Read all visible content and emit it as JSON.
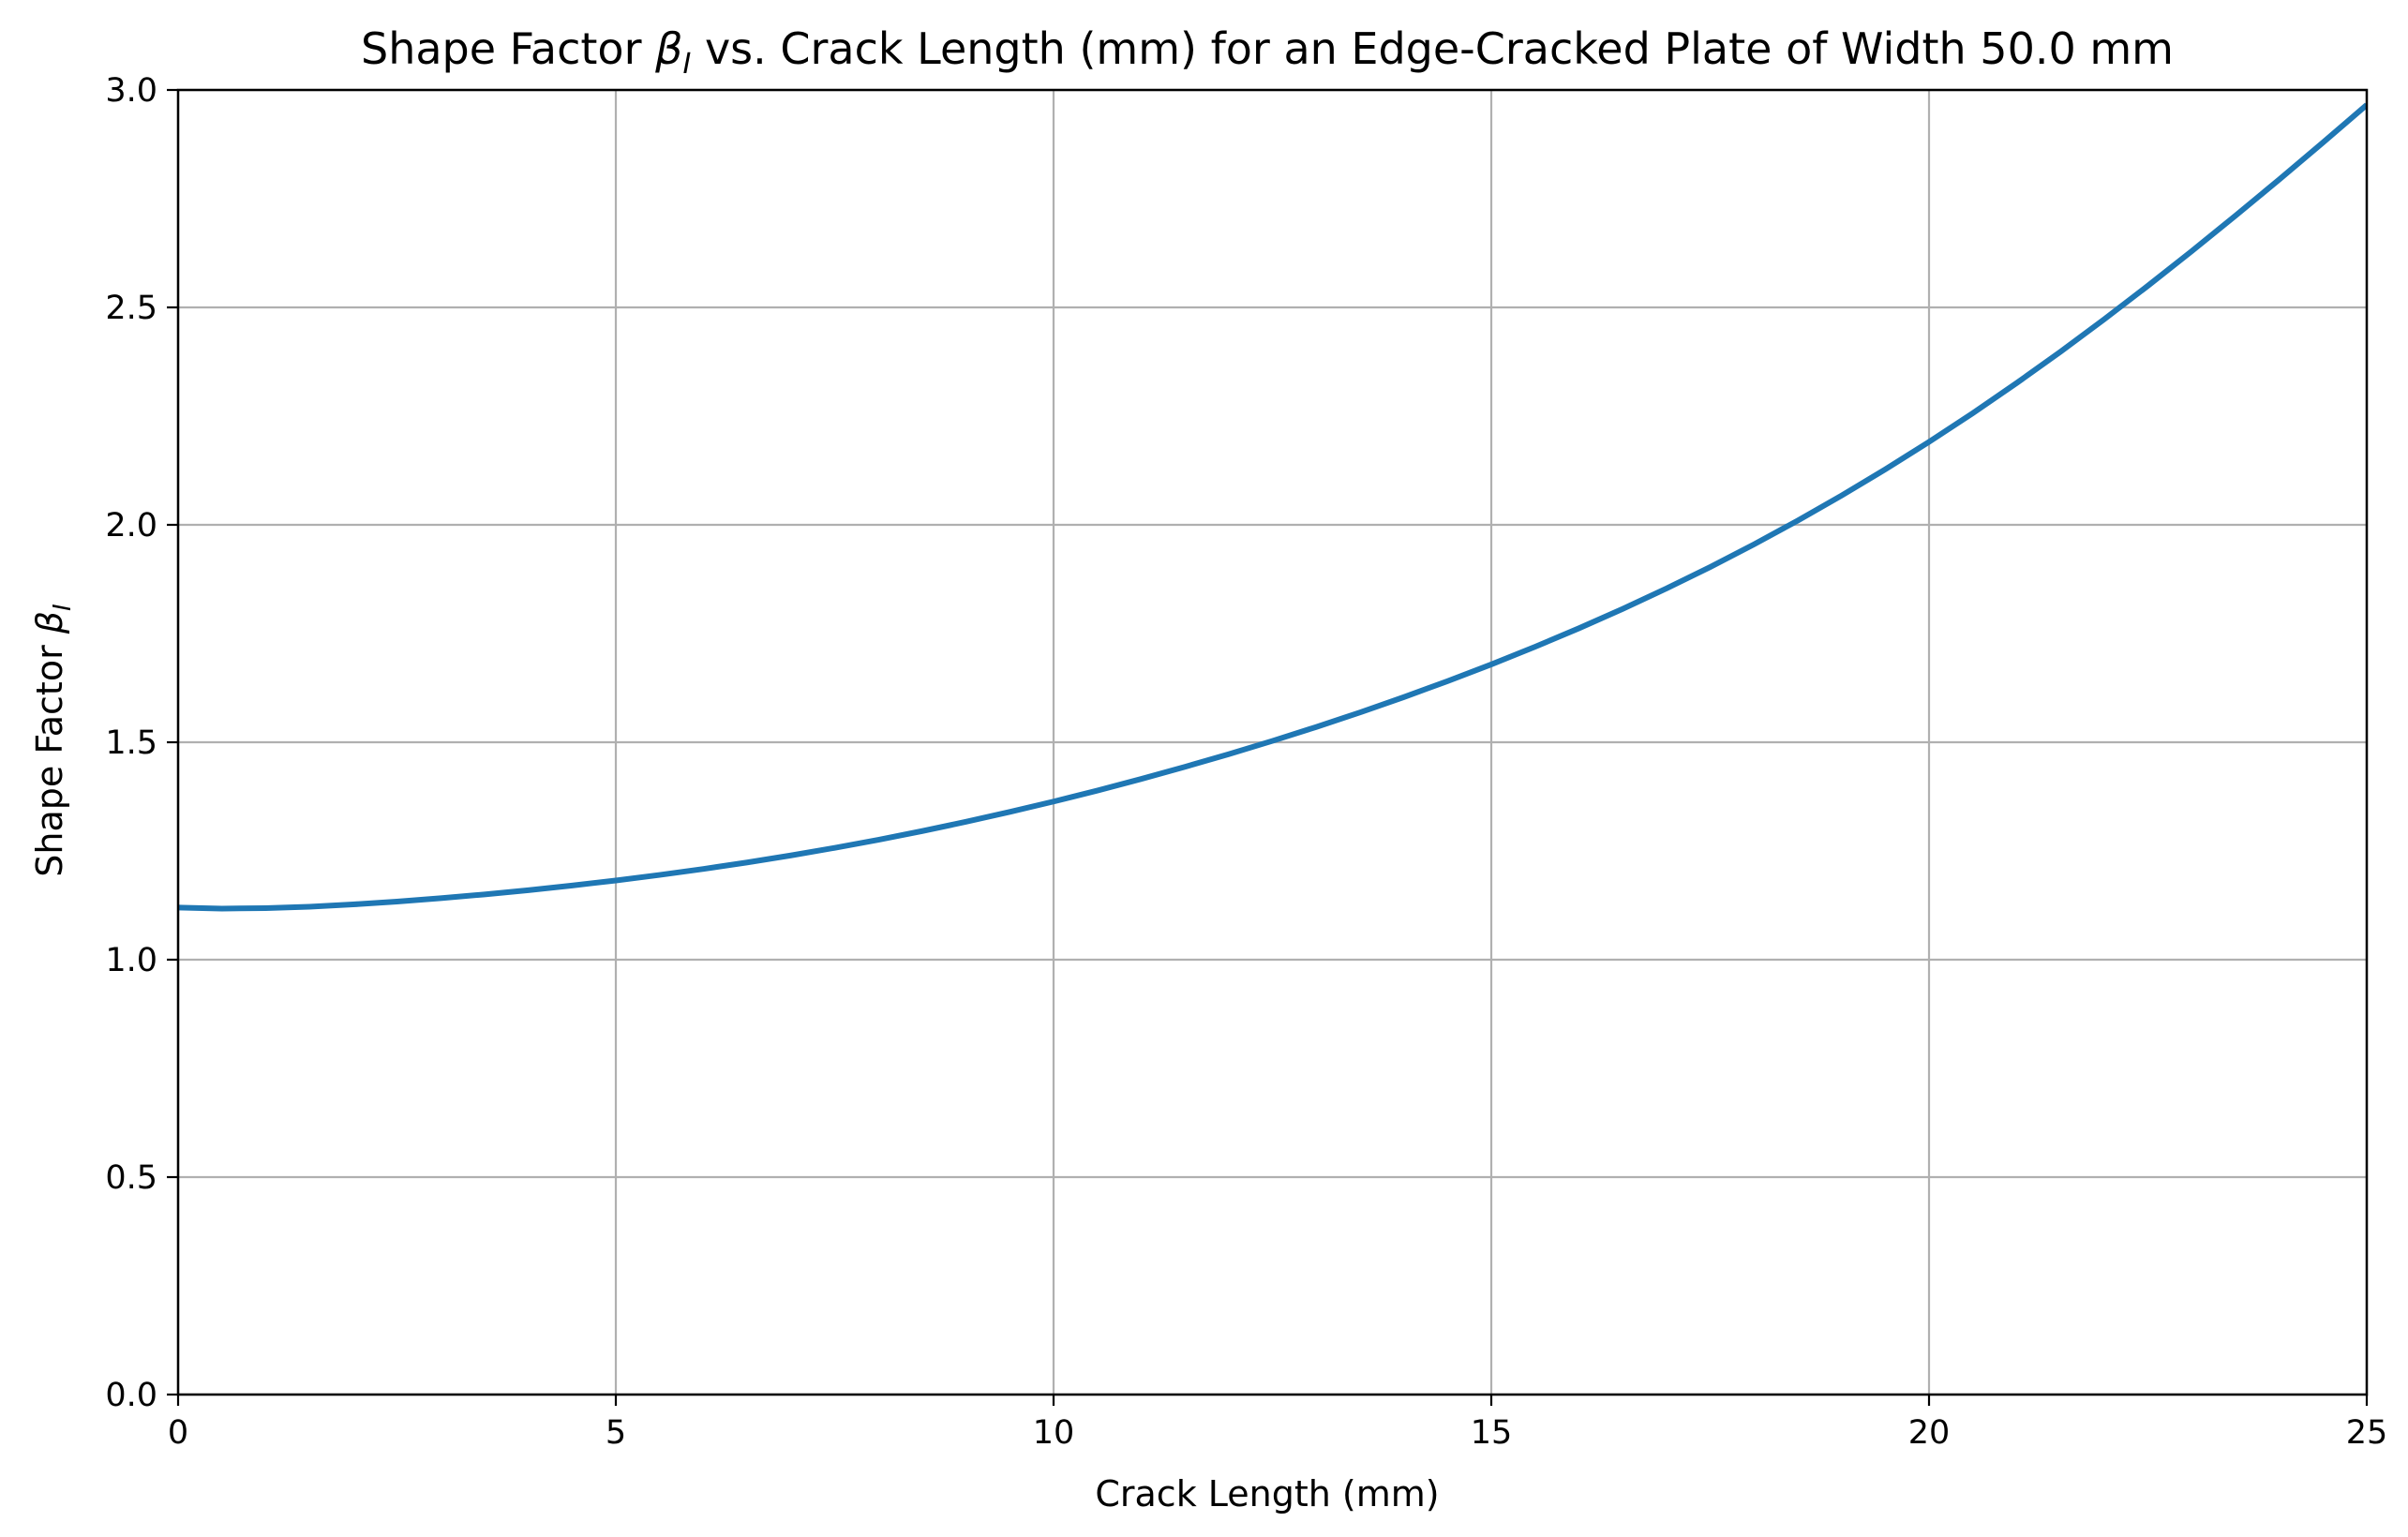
{
  "chart_data": {
    "type": "line",
    "title_prefix": "Shape Factor ",
    "title_symbol": "β",
    "title_subscript": "I",
    "title_suffix": " vs. Crack Length (mm) for an Edge-Cracked Plate of Width 50.0 mm",
    "xlabel": "Crack Length (mm)",
    "ylabel_prefix": "Shape Factor ",
    "ylabel_symbol": "β",
    "ylabel_subscript": "I",
    "xlim": [
      0,
      25
    ],
    "ylim": [
      0,
      3
    ],
    "x_ticks": [
      "0",
      "5",
      "10",
      "15",
      "20",
      "25"
    ],
    "y_ticks": [
      "0.0",
      "0.5",
      "1.0",
      "1.5",
      "2.0",
      "2.5",
      "3.0"
    ],
    "grid": true,
    "line_color": "#1f77b4",
    "grid_color": "#b0b0b0",
    "series": [
      {
        "x": [
          0,
          0.5,
          1,
          1.5,
          2,
          2.5,
          3,
          3.5,
          4,
          4.5,
          5,
          5.5,
          6,
          6.5,
          7,
          7.5,
          8,
          8.5,
          9,
          9.5,
          10,
          10.5,
          11,
          11.5,
          12,
          12.5,
          13,
          13.5,
          14,
          14.5,
          15,
          15.5,
          16,
          16.5,
          17,
          17.5,
          18,
          18.5,
          19,
          19.5,
          20,
          20.5,
          21,
          21.5,
          22,
          22.5,
          23,
          23.5,
          24,
          24.5,
          25
        ],
        "y": [
          1.12,
          1.1175,
          1.1186,
          1.1219,
          1.1271,
          1.1337,
          1.1414,
          1.1501,
          1.1598,
          1.1705,
          1.1822,
          1.1949,
          1.2087,
          1.2236,
          1.2398,
          1.2572,
          1.2758,
          1.2958,
          1.3171,
          1.3398,
          1.3637,
          1.3889,
          1.4155,
          1.4434,
          1.4726,
          1.5031,
          1.5351,
          1.5686,
          1.6037,
          1.6405,
          1.679,
          1.7195,
          1.762,
          1.8066,
          1.8536,
          1.903,
          1.955,
          2.0097,
          2.0672,
          2.1275,
          2.1907,
          2.2568,
          2.3259,
          2.3978,
          2.4725,
          2.5497,
          2.6292,
          2.7108,
          2.7941,
          2.8791,
          2.9657
        ]
      }
    ]
  }
}
